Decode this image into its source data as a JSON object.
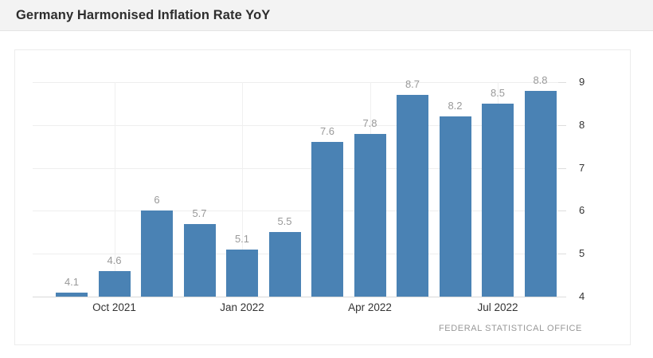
{
  "header": {
    "title": "Germany Harmonised Inflation Rate YoY"
  },
  "chart_data": {
    "type": "bar",
    "title": "Germany Harmonised Inflation Rate YoY",
    "values": [
      4.1,
      4.6,
      6,
      5.7,
      5.1,
      5.5,
      7.6,
      7.8,
      8.7,
      8.2,
      8.5,
      8.8
    ],
    "value_labels": [
      "4.1",
      "4.6",
      "6",
      "5.7",
      "5.1",
      "5.5",
      "7.6",
      "7.8",
      "8.7",
      "8.2",
      "8.5",
      "8.8"
    ],
    "x_ticks": [
      {
        "label": "Oct 2021",
        "bar_index": 1
      },
      {
        "label": "Jan 2022",
        "bar_index": 4
      },
      {
        "label": "Apr 2022",
        "bar_index": 7
      },
      {
        "label": "Jul 2022",
        "bar_index": 10
      }
    ],
    "y_ticks": [
      9,
      8,
      7,
      6,
      5,
      4
    ],
    "ylim": [
      4,
      9
    ],
    "y_axis_side": "right",
    "grid": true,
    "bar_color": "#4a82b4",
    "value_label_color": "#999999",
    "axis_label_color": "#333333",
    "source": "FEDERAL STATISTICAL OFFICE"
  }
}
